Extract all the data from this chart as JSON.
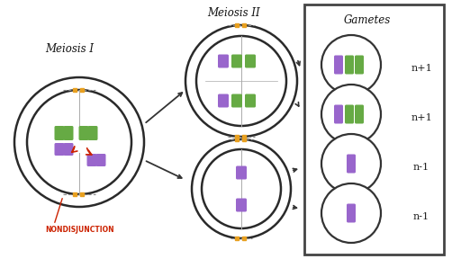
{
  "background_color": "#ffffff",
  "title_meiosis1": "Meiosis I",
  "title_meiosis2": "Meiosis II",
  "title_gametes": "Gametes",
  "nondisjunction_label": "NONDISJUNCTION",
  "nondisjunction_color": "#cc2200",
  "gamete_labels": [
    "n+1",
    "n+1",
    "n-1",
    "n-1"
  ],
  "purple_color": "#9966cc",
  "green_color": "#66aa44",
  "orange_color": "#e8a020",
  "outline_color": "#222222",
  "spindle_color": "#aaaaaa"
}
